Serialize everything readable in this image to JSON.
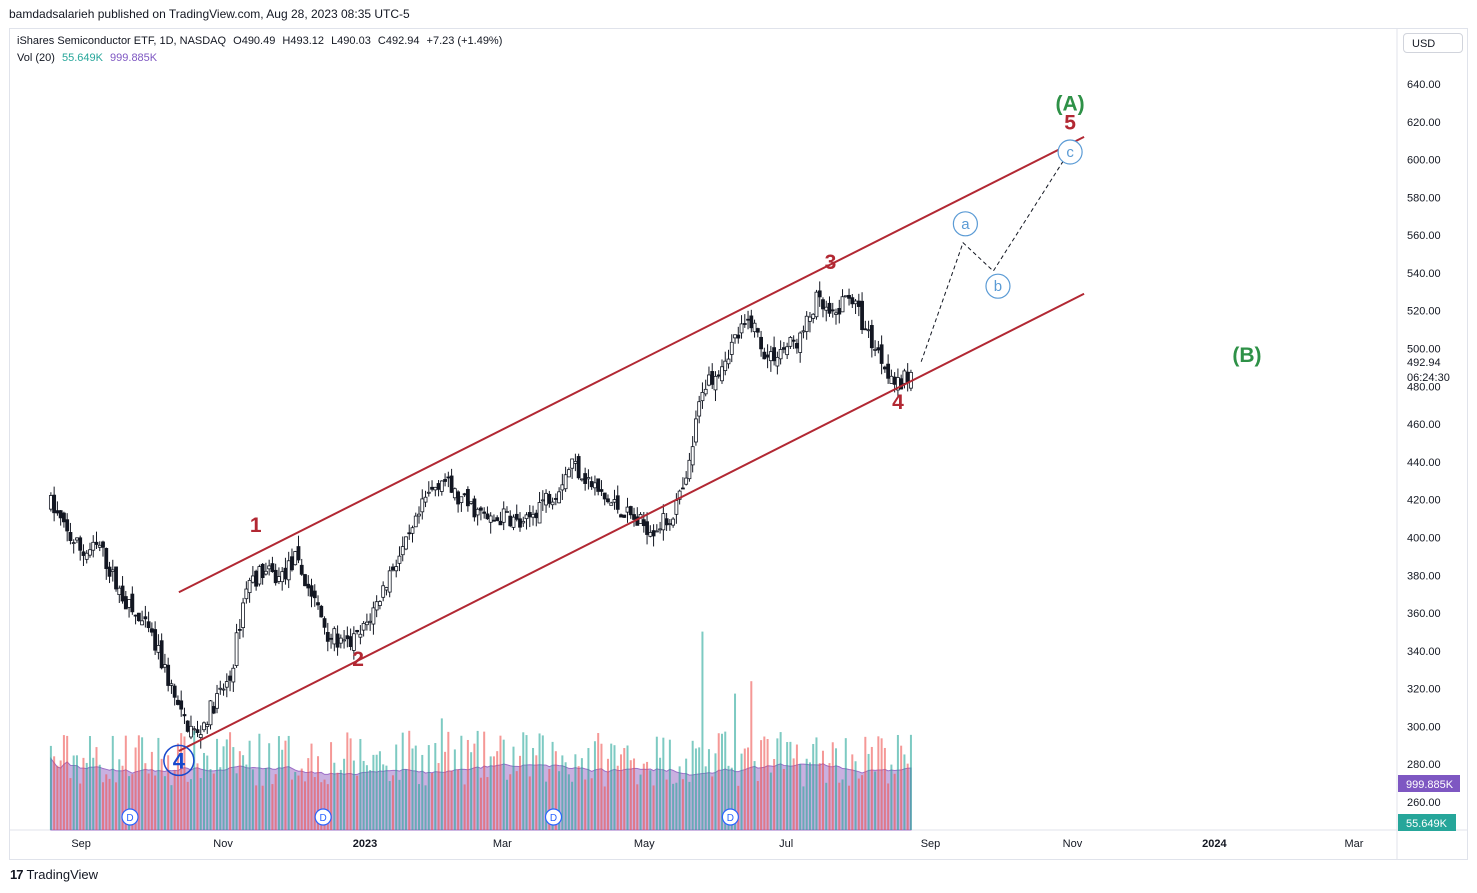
{
  "publisher_line": "bamdadsalarieh published on TradingView.com, Aug 28, 2023 08:35 UTC-5",
  "legend": {
    "symbol": "iShares Semiconductor ETF, 1D, NASDAQ",
    "open": "O490.49",
    "high": "H493.12",
    "low": "L490.03",
    "close": "C492.94",
    "change": "+7.23 (+1.49%)",
    "vol_label": "Vol (20)",
    "vol_value": "55.649K",
    "vol_ma": "999.885K"
  },
  "currency": "USD",
  "footer_brand": "TradingView",
  "colors": {
    "candle": "#131722",
    "channel": "#b22833",
    "wave_red": "#b22833",
    "wave_green": "#2e9147",
    "wave_blue": "#1848cc",
    "wave_light_blue": "#5b9bd5",
    "vol_up": "#26a69a",
    "vol_down": "#ef5350",
    "vol_ma_fill": "#9c6fc7",
    "dividend": "#2962ff"
  },
  "chart_data": {
    "type": "candlestick",
    "y_axis_ticks": [
      640,
      620,
      600,
      580,
      560,
      540,
      520,
      500,
      480,
      460,
      440,
      420,
      400,
      380,
      360,
      340,
      320,
      300,
      280,
      260
    ],
    "y_range": [
      250,
      650
    ],
    "x_axis_labels": [
      "Sep",
      "Nov",
      "2023",
      "Mar",
      "May",
      "Jul",
      "Sep",
      "Nov",
      "2024",
      "Mar"
    ],
    "last_price": "492.94",
    "countdown": "06:24:30",
    "vol_ma_badge": "999.885K",
    "vol_badge": "55.649K",
    "closes": [
      {
        "d": "2022-08-19",
        "c": 418
      },
      {
        "d": "2022-08-26",
        "c": 402
      },
      {
        "d": "2022-09-02",
        "c": 392
      },
      {
        "d": "2022-09-09",
        "c": 395
      },
      {
        "d": "2022-09-16",
        "c": 375
      },
      {
        "d": "2022-09-23",
        "c": 360
      },
      {
        "d": "2022-09-30",
        "c": 350
      },
      {
        "d": "2022-10-07",
        "c": 330
      },
      {
        "d": "2022-10-14",
        "c": 305
      },
      {
        "d": "2022-10-21",
        "c": 295
      },
      {
        "d": "2022-10-28",
        "c": 312
      },
      {
        "d": "2022-11-04",
        "c": 325
      },
      {
        "d": "2022-11-11",
        "c": 375
      },
      {
        "d": "2022-11-18",
        "c": 382
      },
      {
        "d": "2022-11-25",
        "c": 378
      },
      {
        "d": "2022-12-02",
        "c": 388
      },
      {
        "d": "2022-12-09",
        "c": 370
      },
      {
        "d": "2022-12-16",
        "c": 350
      },
      {
        "d": "2022-12-23",
        "c": 342
      },
      {
        "d": "2022-12-30",
        "c": 348
      },
      {
        "d": "2023-01-06",
        "c": 365
      },
      {
        "d": "2023-01-13",
        "c": 385
      },
      {
        "d": "2023-01-20",
        "c": 398
      },
      {
        "d": "2023-01-27",
        "c": 420
      },
      {
        "d": "2023-02-03",
        "c": 432
      },
      {
        "d": "2023-02-10",
        "c": 420
      },
      {
        "d": "2023-02-17",
        "c": 415
      },
      {
        "d": "2023-02-24",
        "c": 408
      },
      {
        "d": "2023-03-03",
        "c": 412
      },
      {
        "d": "2023-03-10",
        "c": 405
      },
      {
        "d": "2023-03-17",
        "c": 418
      },
      {
        "d": "2023-03-24",
        "c": 425
      },
      {
        "d": "2023-03-31",
        "c": 440
      },
      {
        "d": "2023-04-07",
        "c": 430
      },
      {
        "d": "2023-04-14",
        "c": 420
      },
      {
        "d": "2023-04-21",
        "c": 415
      },
      {
        "d": "2023-04-28",
        "c": 408
      },
      {
        "d": "2023-05-05",
        "c": 405
      },
      {
        "d": "2023-05-12",
        "c": 410
      },
      {
        "d": "2023-05-19",
        "c": 428
      },
      {
        "d": "2023-05-26",
        "c": 480
      },
      {
        "d": "2023-06-02",
        "c": 490
      },
      {
        "d": "2023-06-09",
        "c": 505
      },
      {
        "d": "2023-06-16",
        "c": 515
      },
      {
        "d": "2023-06-23",
        "c": 495
      },
      {
        "d": "2023-06-30",
        "c": 500
      },
      {
        "d": "2023-07-07",
        "c": 505
      },
      {
        "d": "2023-07-14",
        "c": 525
      },
      {
        "d": "2023-07-21",
        "c": 515
      },
      {
        "d": "2023-07-28",
        "c": 530
      },
      {
        "d": "2023-08-04",
        "c": 510
      },
      {
        "d": "2023-08-11",
        "c": 495
      },
      {
        "d": "2023-08-18",
        "c": 480
      },
      {
        "d": "2023-08-25",
        "c": 488
      }
    ],
    "volume_spikes": [
      {
        "d": "2023-05-26",
        "v": 3.2
      },
      {
        "d": "2023-06-09",
        "v": 2.2
      },
      {
        "d": "2023-06-16",
        "v": 2.4
      },
      {
        "d": "2023-02-03",
        "v": 1.8
      },
      {
        "d": "2023-01-20",
        "v": 1.6
      }
    ],
    "channel": {
      "upper": [
        {
          "d": "2022-10-13",
          "v": 371
        },
        {
          "d": "2023-11-06",
          "v": 612
        }
      ],
      "lower": [
        {
          "d": "2022-10-13",
          "v": 287
        },
        {
          "d": "2023-11-06",
          "v": 529
        }
      ]
    },
    "projection": [
      {
        "d": "2023-08-28",
        "v": 493
      },
      {
        "d": "2023-09-15",
        "v": 556
      },
      {
        "d": "2023-09-28",
        "v": 541
      },
      {
        "d": "2023-10-30",
        "v": 603
      }
    ],
    "annotations": [
      {
        "label": "4",
        "kind": "circle-blue",
        "d": "2022-10-13",
        "v": 282
      },
      {
        "label": "1",
        "kind": "red",
        "d": "2022-11-15",
        "v": 403
      },
      {
        "label": "2",
        "kind": "red",
        "d": "2022-12-29",
        "v": 332
      },
      {
        "label": "3",
        "kind": "red",
        "d": "2023-07-20",
        "v": 542
      },
      {
        "label": "4",
        "kind": "red",
        "d": "2023-08-18",
        "v": 468
      },
      {
        "label": "a",
        "kind": "circle-light",
        "d": "2023-09-16",
        "v": 566
      },
      {
        "label": "b",
        "kind": "circle-light",
        "d": "2023-09-30",
        "v": 533
      },
      {
        "label": "c",
        "kind": "circle-light",
        "d": "2023-10-31",
        "v": 604
      },
      {
        "label": "5",
        "kind": "red",
        "d": "2023-10-31",
        "v": 616
      },
      {
        "label": "(A)",
        "kind": "green",
        "d": "2023-10-31",
        "v": 626
      },
      {
        "label": "(B)",
        "kind": "green",
        "d": "2024-01-15",
        "v": 493
      }
    ],
    "dividends": [
      {
        "label": "D",
        "d": "2022-09-22"
      },
      {
        "label": "D",
        "d": "2022-12-14"
      },
      {
        "label": "D",
        "d": "2023-03-23"
      },
      {
        "label": "D",
        "d": "2023-06-07"
      }
    ]
  }
}
